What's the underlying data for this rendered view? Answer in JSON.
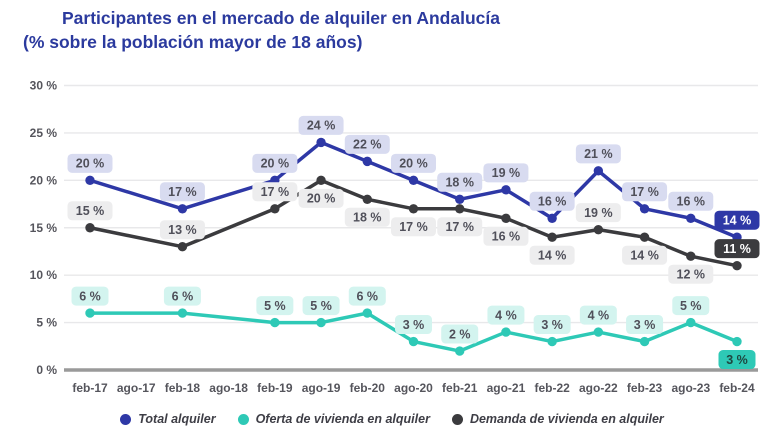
{
  "title": {
    "line1": "Participantes en el mercado de alquiler en Andalucía",
    "line2": "(% sobre la población mayor de 18 años)"
  },
  "colors": {
    "background": "#ffffff",
    "title": "#2b3a9e",
    "grid": "#e8e8ea",
    "axis": "#9a9a9a",
    "tick_text": "#55555c",
    "data_label_text": "#50505a"
  },
  "chart_data": {
    "type": "line",
    "title": "Participantes en el mercado de alquiler en Andalucía (% sobre la población mayor de 18 años)",
    "xlabel": "",
    "ylabel": "",
    "ylim": [
      0,
      30
    ],
    "y_tick_step": 5,
    "grid": "horizontal",
    "legend_position": "bottom",
    "categories": [
      "feb-17",
      "ago-17",
      "feb-18",
      "ago-18",
      "feb-19",
      "ago-19",
      "feb-20",
      "ago-20",
      "feb-21",
      "ago-21",
      "feb-22",
      "ago-22",
      "feb-23",
      "ago-23",
      "feb-24"
    ],
    "y_ticks": [
      {
        "v": 0,
        "label": "0 %"
      },
      {
        "v": 5,
        "label": "5 %"
      },
      {
        "v": 10,
        "label": "10 %"
      },
      {
        "v": 15,
        "label": "15 %"
      },
      {
        "v": 20,
        "label": "20 %"
      },
      {
        "v": 25,
        "label": "25 %"
      },
      {
        "v": 30,
        "label": "30 %"
      }
    ],
    "series": [
      {
        "name": "Total alquiler",
        "color": "#2e38a6",
        "label_bg": "#d8dbf0",
        "end_pill": {
          "bg": "#2e38a6",
          "text": "#ffffff"
        },
        "x_indices": [
          0,
          2,
          4,
          5,
          6,
          7,
          8,
          9,
          10,
          11,
          12,
          13,
          14
        ],
        "values": [
          20,
          17,
          20,
          24,
          22,
          20,
          18,
          19,
          16,
          21,
          17,
          16,
          14
        ],
        "labels": [
          "20 %",
          "17 %",
          "20 %",
          "24 %",
          "22 %",
          "20 %",
          "18 %",
          "19 %",
          "16 %",
          "21 %",
          "17 %",
          "16 %",
          "14 %"
        ],
        "label_side": [
          "above",
          "above",
          "above",
          "above",
          "above",
          "above",
          "above",
          "above",
          "above",
          "above",
          "above",
          "above",
          "above"
        ]
      },
      {
        "name": "Oferta de vivienda en alquiler",
        "color": "#2ec9b6",
        "label_bg": "#d3f4ef",
        "end_pill": {
          "bg": "#2ec9b6",
          "text": "#1e4640"
        },
        "x_indices": [
          0,
          2,
          4,
          5,
          6,
          7,
          8,
          9,
          10,
          11,
          12,
          13,
          14
        ],
        "values": [
          6,
          6,
          5,
          5,
          6,
          3,
          2,
          4,
          3,
          4,
          3,
          5,
          3
        ],
        "labels": [
          "6 %",
          "6 %",
          "5 %",
          "5 %",
          "6 %",
          "3 %",
          "2 %",
          "4 %",
          "3 %",
          "4 %",
          "3 %",
          "5 %",
          "3 %"
        ],
        "label_side": [
          "above",
          "above",
          "above",
          "above",
          "above",
          "above",
          "above",
          "above",
          "above",
          "above",
          "above",
          "above",
          "below"
        ]
      },
      {
        "name": "Demanda de vivienda en alquiler",
        "color": "#3b3b3e",
        "label_bg": "#ededee",
        "end_pill": {
          "bg": "#3b3b3e",
          "text": "#ffffff"
        },
        "x_indices": [
          0,
          2,
          4,
          5,
          6,
          7,
          8,
          9,
          10,
          11,
          12,
          13,
          14
        ],
        "values": [
          15,
          13,
          17,
          20,
          18,
          17,
          17,
          16,
          14,
          19,
          14,
          12,
          11
        ],
        "plot_overrides": {
          "9": 14.8
        },
        "labels": [
          "15 %",
          "13 %",
          "17 %",
          "20 %",
          "18 %",
          "17 %",
          "17 %",
          "16 %",
          "14 %",
          "19 %",
          "14 %",
          "12 %",
          "11 %"
        ],
        "label_side": [
          "above",
          "above",
          "above",
          "below",
          "below",
          "below",
          "below",
          "below",
          "below",
          "above",
          "below",
          "below",
          "above"
        ]
      }
    ]
  }
}
